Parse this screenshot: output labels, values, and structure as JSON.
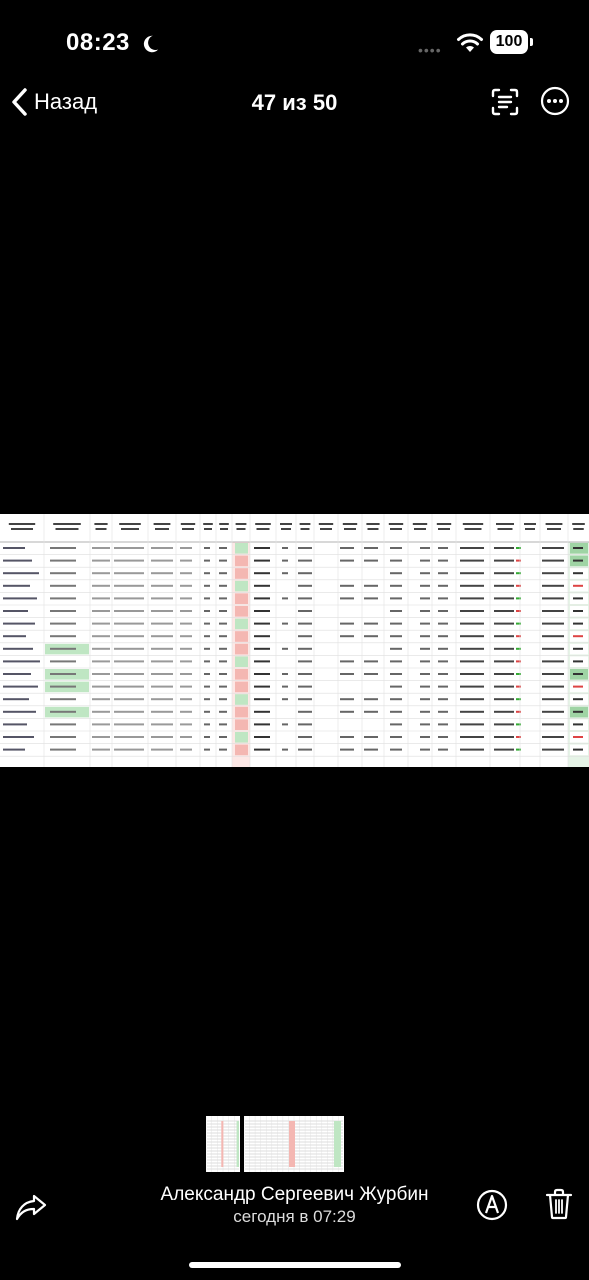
{
  "status_bar": {
    "time": "08:23",
    "battery": "100",
    "signal_dots": "••••"
  },
  "nav": {
    "back_label": "Назад",
    "counter": "47 из 50",
    "icons": [
      "chevron-left-icon",
      "text-scan-icon",
      "more-icon"
    ]
  },
  "photo": {
    "description_type": "spreadsheet-photo",
    "header_cells": [
      "Артикул",
      "SKU",
      "Бренд",
      "Категория",
      "План",
      "Факт",
      "% Выкупа",
      "ДРР",
      "План на Месяц",
      "Факт Сумма",
      "Прогноз"
    ],
    "accent_green": "#bfe6c3",
    "accent_red": "#f4b7b2"
  },
  "bottom": {
    "sender": "Александр Сергеевич Журбин",
    "date": "сегодня в 07:29",
    "icons": [
      "share-icon",
      "markup-icon",
      "trash-icon"
    ]
  }
}
